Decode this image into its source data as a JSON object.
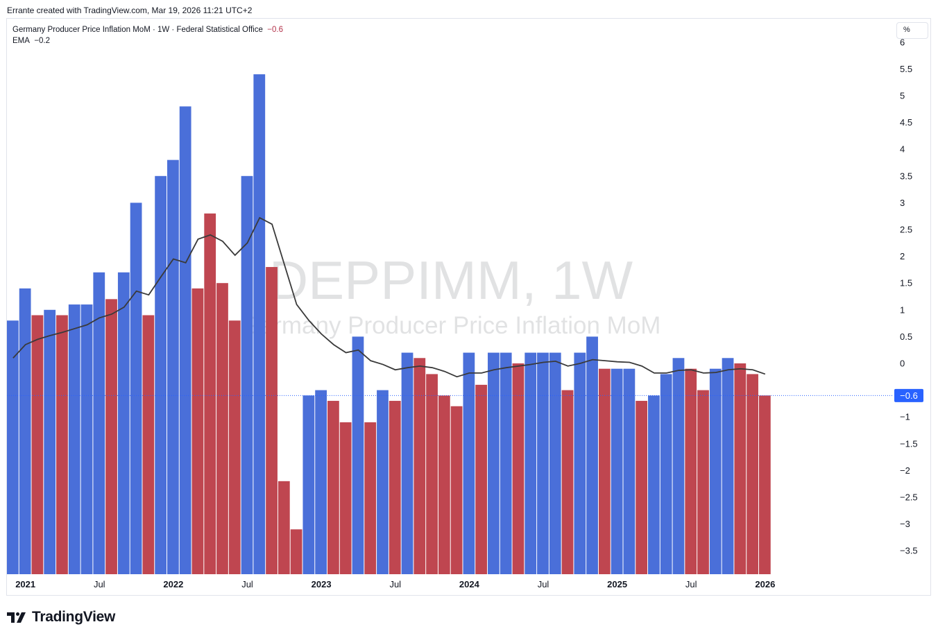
{
  "header": {
    "credit": "Errante created with TradingView.com, Mar 19, 2026 11:21 UTC+2"
  },
  "legend": {
    "series_title": "Germany Producer Price Inflation MoM · 1W · Federal Statistical Office",
    "series_value": "−0.6",
    "ema_label": "EMA",
    "ema_value": "−0.2"
  },
  "toolbar": {
    "unit_button": "%"
  },
  "watermark": {
    "symbol": "DEPPIMM, 1W",
    "name": "Germany Producer Price Inflation MoM"
  },
  "last_value_badge": "−0.6",
  "brand": {
    "logo_text": "TradingView"
  },
  "colors": {
    "up_bar": "#4a6fd9",
    "down_bar": "#bf4650",
    "ema_line": "#3a3a3a",
    "badge": "#2962ff",
    "price_line": "#2962ff"
  },
  "chart_data": {
    "type": "bar",
    "title": "Germany Producer Price Inflation MoM",
    "ylabel": "%",
    "ylim": [
      -3.9,
      6
    ],
    "y_ticks": [
      "6",
      "5.5",
      "5",
      "4.5",
      "4",
      "3.5",
      "3",
      "2.5",
      "2",
      "1.5",
      "1",
      "0.5",
      "0",
      "−0.5",
      "−1",
      "−1.5",
      "−2",
      "−2.5",
      "−3",
      "−3.5"
    ],
    "y_tick_values": [
      6,
      5.5,
      5,
      4.5,
      4,
      3.5,
      3,
      2.5,
      2,
      1.5,
      1,
      0.5,
      0,
      -0.5,
      -1,
      -1.5,
      -2,
      -2.5,
      -3,
      -3.5
    ],
    "x_ticks": [
      {
        "label": "2021",
        "index": 1,
        "major": true
      },
      {
        "label": "Jul",
        "index": 7,
        "major": false
      },
      {
        "label": "2022",
        "index": 13,
        "major": true
      },
      {
        "label": "Jul",
        "index": 19,
        "major": false
      },
      {
        "label": "2023",
        "index": 25,
        "major": true
      },
      {
        "label": "Jul",
        "index": 31,
        "major": false
      },
      {
        "label": "2024",
        "index": 37,
        "major": true
      },
      {
        "label": "Jul",
        "index": 43,
        "major": false
      },
      {
        "label": "2025",
        "index": 49,
        "major": true
      },
      {
        "label": "Jul",
        "index": 55,
        "major": false
      },
      {
        "label": "2026",
        "index": 61,
        "major": true
      }
    ],
    "series": [
      {
        "name": "Germany Producer Price Inflation MoM",
        "values": [
          0.8,
          1.4,
          0.9,
          1.0,
          0.9,
          1.1,
          1.1,
          1.7,
          1.2,
          1.7,
          3.0,
          0.9,
          3.5,
          3.8,
          4.8,
          1.4,
          2.8,
          1.5,
          0.8,
          3.5,
          5.4,
          1.8,
          -2.2,
          -3.1,
          -0.6,
          -0.5,
          -0.7,
          -1.1,
          0.5,
          -1.1,
          -0.5,
          -0.7,
          0.2,
          0.1,
          -0.2,
          -0.6,
          -0.8,
          0.2,
          -0.4,
          0.2,
          0.2,
          0.0,
          0.2,
          0.2,
          0.2,
          -0.5,
          0.2,
          0.5,
          -0.1,
          -0.1,
          -0.1,
          -0.7,
          -0.6,
          -0.2,
          0.1,
          -0.1,
          -0.5,
          -0.1,
          0.1,
          0.0,
          -0.2,
          -0.6
        ],
        "colors": [
          "up",
          "up",
          "down",
          "up",
          "down",
          "up",
          "up",
          "up",
          "down",
          "up",
          "up",
          "down",
          "up",
          "up",
          "up",
          "down",
          "down",
          "down",
          "down",
          "up",
          "up",
          "down",
          "down",
          "down",
          "up",
          "up",
          "down",
          "down",
          "up",
          "down",
          "up",
          "down",
          "up",
          "down",
          "down",
          "down",
          "down",
          "up",
          "down",
          "up",
          "up",
          "down",
          "up",
          "up",
          "up",
          "down",
          "up",
          "up",
          "down",
          "up",
          "up",
          "down",
          "up",
          "up",
          "up",
          "down",
          "down",
          "up",
          "up",
          "down",
          "down",
          "down"
        ]
      },
      {
        "name": "EMA",
        "values": [
          0.1,
          0.35,
          0.45,
          0.52,
          0.58,
          0.65,
          0.72,
          0.85,
          0.92,
          1.05,
          1.35,
          1.28,
          1.62,
          1.95,
          1.88,
          2.32,
          2.4,
          2.28,
          2.02,
          2.25,
          2.72,
          2.6,
          1.85,
          1.1,
          0.8,
          0.55,
          0.35,
          0.2,
          0.25,
          0.05,
          -0.02,
          -0.12,
          -0.08,
          -0.05,
          -0.08,
          -0.15,
          -0.25,
          -0.18,
          -0.18,
          -0.12,
          -0.08,
          -0.05,
          -0.02,
          0.02,
          0.04,
          -0.05,
          0.0,
          0.07,
          0.05,
          0.03,
          0.02,
          -0.05,
          -0.18,
          -0.18,
          -0.13,
          -0.12,
          -0.18,
          -0.17,
          -0.12,
          -0.1,
          -0.12,
          -0.2
        ]
      }
    ]
  }
}
